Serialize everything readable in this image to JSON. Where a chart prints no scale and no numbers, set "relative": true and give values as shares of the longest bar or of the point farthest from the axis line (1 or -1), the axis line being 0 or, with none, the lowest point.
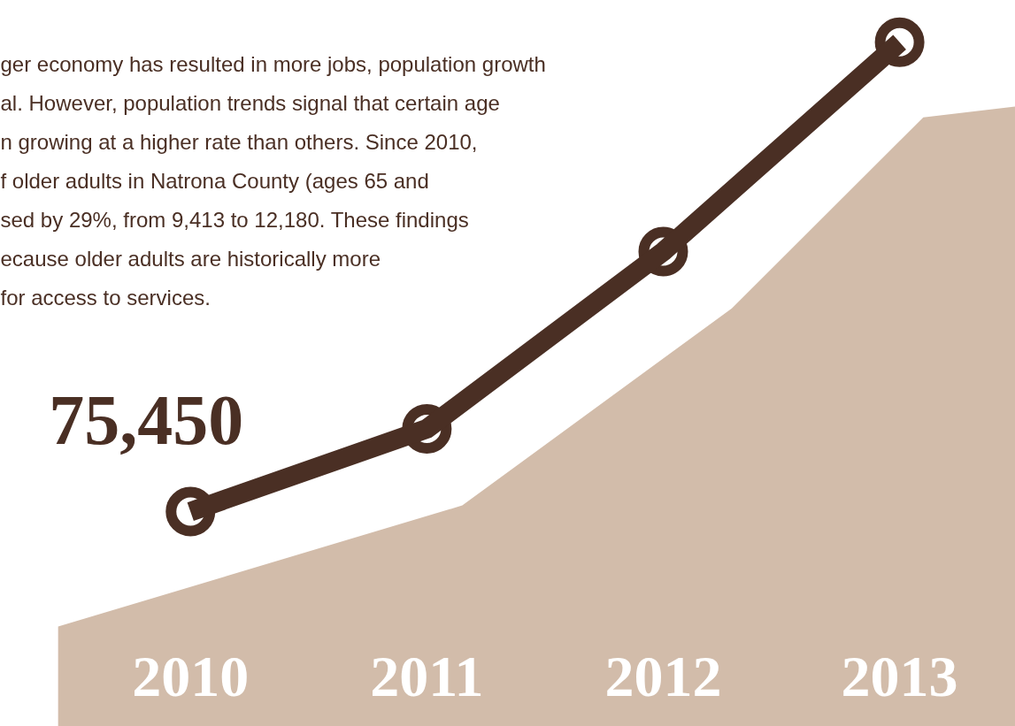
{
  "chart_data": {
    "type": "line",
    "relative": true,
    "x": [
      2010,
      2011,
      2012,
      2013
    ],
    "xlim": [
      2009.196,
      2013.49
    ],
    "xticks": [
      2010,
      2011,
      2012,
      2013
    ],
    "series": [
      {
        "type": "area",
        "color": "#d2bcaa",
        "x": [
          2009.44,
          2011.15,
          2012.29,
          2013.1,
          2013.49
        ],
        "values": [
          0.146,
          0.323,
          0.611,
          0.89,
          0.906
        ]
      },
      {
        "color": "#4a2f24",
        "values": [
          0.314,
          0.435,
          0.694,
          1.0
        ],
        "marker": "circle"
      }
    ],
    "line_style": "solid",
    "grid": false,
    "annotations": [
      {
        "text": "75,450",
        "x": 2010,
        "y": 0.314
      },
      "ger economy has resulted in more jobs, population growth\nal. However, population trends signal that certain age\nn growing at a higher rate than others. Since 2010,\nf older adults in Natrona County (ages 65 and\nsed by 29%, from 9,413 to 12,180. These findings\necause older adults are historically more\n for access to services."
    ]
  }
}
